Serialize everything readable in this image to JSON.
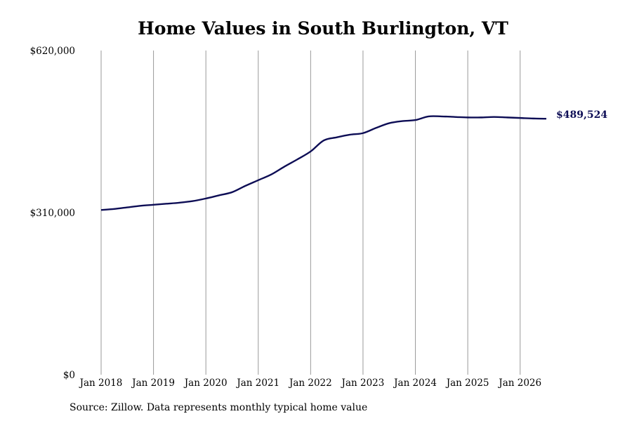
{
  "chart_data": {
    "type": "line",
    "title": "Home Values in South Burlington, VT",
    "xlabel": "",
    "ylabel": "",
    "source": "Source: Zillow. Data represents monthly typical home value",
    "ylim": [
      0,
      620000
    ],
    "y_ticks": [
      {
        "value": 0,
        "label": "$0"
      },
      {
        "value": 310000,
        "label": "$310,000"
      },
      {
        "value": 620000,
        "label": "$620,000"
      }
    ],
    "x_ticks": [
      "Jan 2018",
      "Jan 2019",
      "Jan 2020",
      "Jan 2021",
      "Jan 2022",
      "Jan 2023",
      "Jan 2024",
      "Jan 2025",
      "Jan 2026"
    ],
    "x_range": [
      "2018-01",
      "2026-07"
    ],
    "grid": "vertical",
    "end_label": "$489,524",
    "line_color": "#0d0d55",
    "grid_color": "#999999",
    "series": [
      {
        "points": [
          [
            "2018-01",
            315000
          ],
          [
            "2018-04",
            317000
          ],
          [
            "2018-07",
            320000
          ],
          [
            "2018-10",
            323000
          ],
          [
            "2019-01",
            325000
          ],
          [
            "2019-04",
            327000
          ],
          [
            "2019-07",
            329000
          ],
          [
            "2019-10",
            332000
          ],
          [
            "2020-01",
            337000
          ],
          [
            "2020-04",
            343000
          ],
          [
            "2020-07",
            349000
          ],
          [
            "2020-10",
            361000
          ],
          [
            "2021-01",
            372000
          ],
          [
            "2021-04",
            383000
          ],
          [
            "2021-07",
            398000
          ],
          [
            "2021-10",
            412000
          ],
          [
            "2022-01",
            427000
          ],
          [
            "2022-04",
            448000
          ],
          [
            "2022-07",
            454000
          ],
          [
            "2022-10",
            459000
          ],
          [
            "2023-01",
            462000
          ],
          [
            "2023-04",
            472000
          ],
          [
            "2023-07",
            481000
          ],
          [
            "2023-10",
            485000
          ],
          [
            "2024-01",
            487000
          ],
          [
            "2024-04",
            494000
          ],
          [
            "2024-07",
            494000
          ],
          [
            "2024-10",
            493000
          ],
          [
            "2025-01",
            492000
          ],
          [
            "2025-04",
            492000
          ],
          [
            "2025-07",
            493000
          ],
          [
            "2025-10",
            492000
          ],
          [
            "2026-01",
            491000
          ],
          [
            "2026-04",
            490000
          ],
          [
            "2026-07",
            489524
          ]
        ]
      }
    ]
  }
}
